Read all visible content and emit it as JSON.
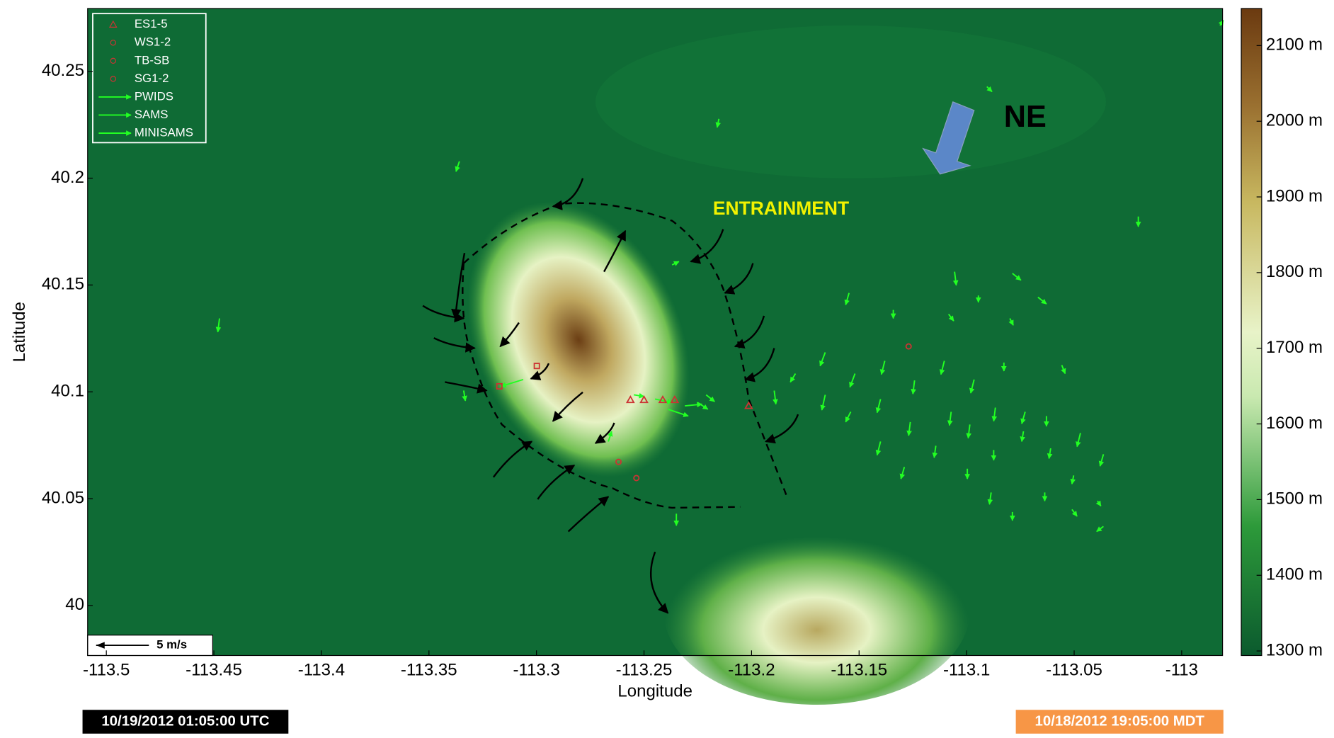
{
  "chart_data": {
    "type": "map",
    "xlabel": "Longitude",
    "ylabel": "Latitude",
    "xlim": [
      -113.5087,
      -112.981
    ],
    "ylim": [
      39.9766,
      40.2794
    ],
    "xticks": [
      -113.5,
      -113.45,
      -113.4,
      -113.35,
      -113.3,
      -113.25,
      -113.2,
      -113.15,
      -113.1,
      -113.05,
      -113
    ],
    "yticks": [
      40,
      40.05,
      40.1,
      40.15,
      40.2,
      40.25
    ],
    "colorbar": {
      "lim": [
        1294,
        2149
      ],
      "ticks": [
        {
          "value": 1300,
          "label": "1300 m"
        },
        {
          "value": 1400,
          "label": "1400 m"
        },
        {
          "value": 1500,
          "label": "1500 m"
        },
        {
          "value": 1600,
          "label": "1600 m"
        },
        {
          "value": 1700,
          "label": "1700 m"
        },
        {
          "value": 1800,
          "label": "1800 m"
        },
        {
          "value": 1900,
          "label": "1900 m"
        },
        {
          "value": 2000,
          "label": "2000 m"
        },
        {
          "value": 2100,
          "label": "2100 m"
        }
      ]
    },
    "legend": [
      "ES1-5",
      "WS1-2",
      "TB-SB",
      "SG1-2",
      "PWIDS",
      "SAMS",
      "MINISAMS"
    ],
    "annotations": {
      "wind": "NE",
      "zone": "ENTRAINMENT",
      "scale": "5 m/s"
    },
    "time_utc": "10/19/2012 01:05:00 UTC",
    "time_local": "10/18/2012 19:05:00 MDT"
  }
}
